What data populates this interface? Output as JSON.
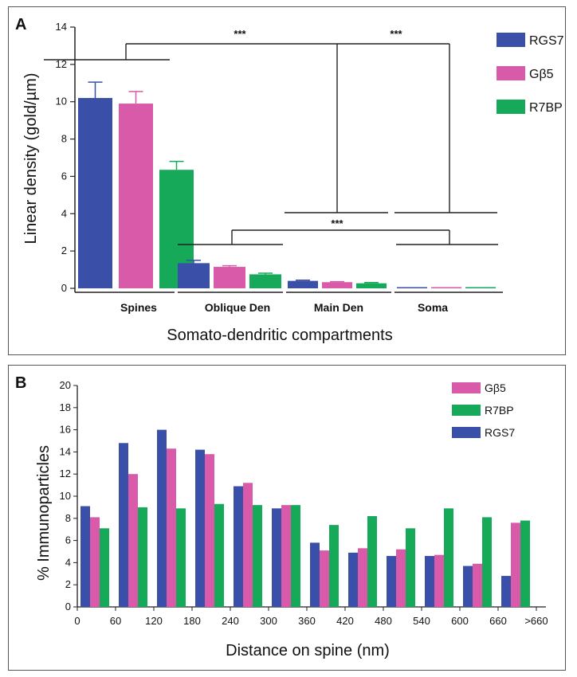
{
  "colors": {
    "RGS7": "#3a4fa8",
    "Gb5": "#d95aa8",
    "R7BP": "#16a95a",
    "axis": "#222222"
  },
  "chart_data": [
    {
      "panel": "A",
      "type": "bar",
      "title": "",
      "xlabel": "Somato-dendritic compartments",
      "ylabel": "Linear density (gold/µm)",
      "ylim": [
        0,
        14
      ],
      "yticks": [
        0,
        2,
        4,
        6,
        8,
        10,
        12,
        14
      ],
      "categories": [
        "Spines",
        "Oblique Den",
        "Main Den",
        "Soma"
      ],
      "series": [
        {
          "name": "RGS7",
          "values": [
            10.2,
            1.35,
            0.4,
            0.05
          ],
          "errors": [
            0.85,
            0.15,
            0.04,
            0.01
          ]
        },
        {
          "name": "Gβ5",
          "values": [
            9.9,
            1.15,
            0.33,
            0.05
          ],
          "errors": [
            0.65,
            0.06,
            0.03,
            0.01
          ]
        },
        {
          "name": "R7BP",
          "values": [
            6.35,
            0.75,
            0.27,
            0.05
          ],
          "errors": [
            0.45,
            0.06,
            0.04,
            0.01
          ]
        }
      ],
      "legend": [
        "RGS7",
        "Gβ5",
        "R7BP"
      ],
      "legend_position": "top-right",
      "annotations": [
        "***",
        "***",
        "***"
      ]
    },
    {
      "panel": "B",
      "type": "bar",
      "title": "",
      "xlabel": "Distance on spine (nm)",
      "ylabel": "% Immunoparticles",
      "ylim": [
        0,
        20
      ],
      "yticks": [
        0,
        2,
        4,
        6,
        8,
        10,
        12,
        14,
        16,
        18,
        20
      ],
      "xtick_labels": [
        "0",
        "60",
        "120",
        "180",
        "240",
        "300",
        "360",
        "420",
        "480",
        "540",
        "600",
        "660",
        ">660"
      ],
      "bins": 12,
      "series": [
        {
          "name": "RGS7",
          "values": [
            9.1,
            14.8,
            16.0,
            14.2,
            10.9,
            8.9,
            5.8,
            4.9,
            4.6,
            4.6,
            3.7,
            2.8
          ]
        },
        {
          "name": "Gβ5",
          "values": [
            8.1,
            12.0,
            14.3,
            13.8,
            11.2,
            9.2,
            5.1,
            5.3,
            5.2,
            4.7,
            3.9,
            7.6
          ]
        },
        {
          "name": "R7BP",
          "values": [
            7.1,
            9.0,
            8.9,
            9.3,
            9.2,
            9.2,
            7.4,
            8.2,
            7.1,
            8.9,
            8.1,
            7.8
          ]
        }
      ],
      "legend": [
        "Gβ5",
        "R7BP",
        "RGS7"
      ],
      "legend_position": "top-right"
    }
  ]
}
